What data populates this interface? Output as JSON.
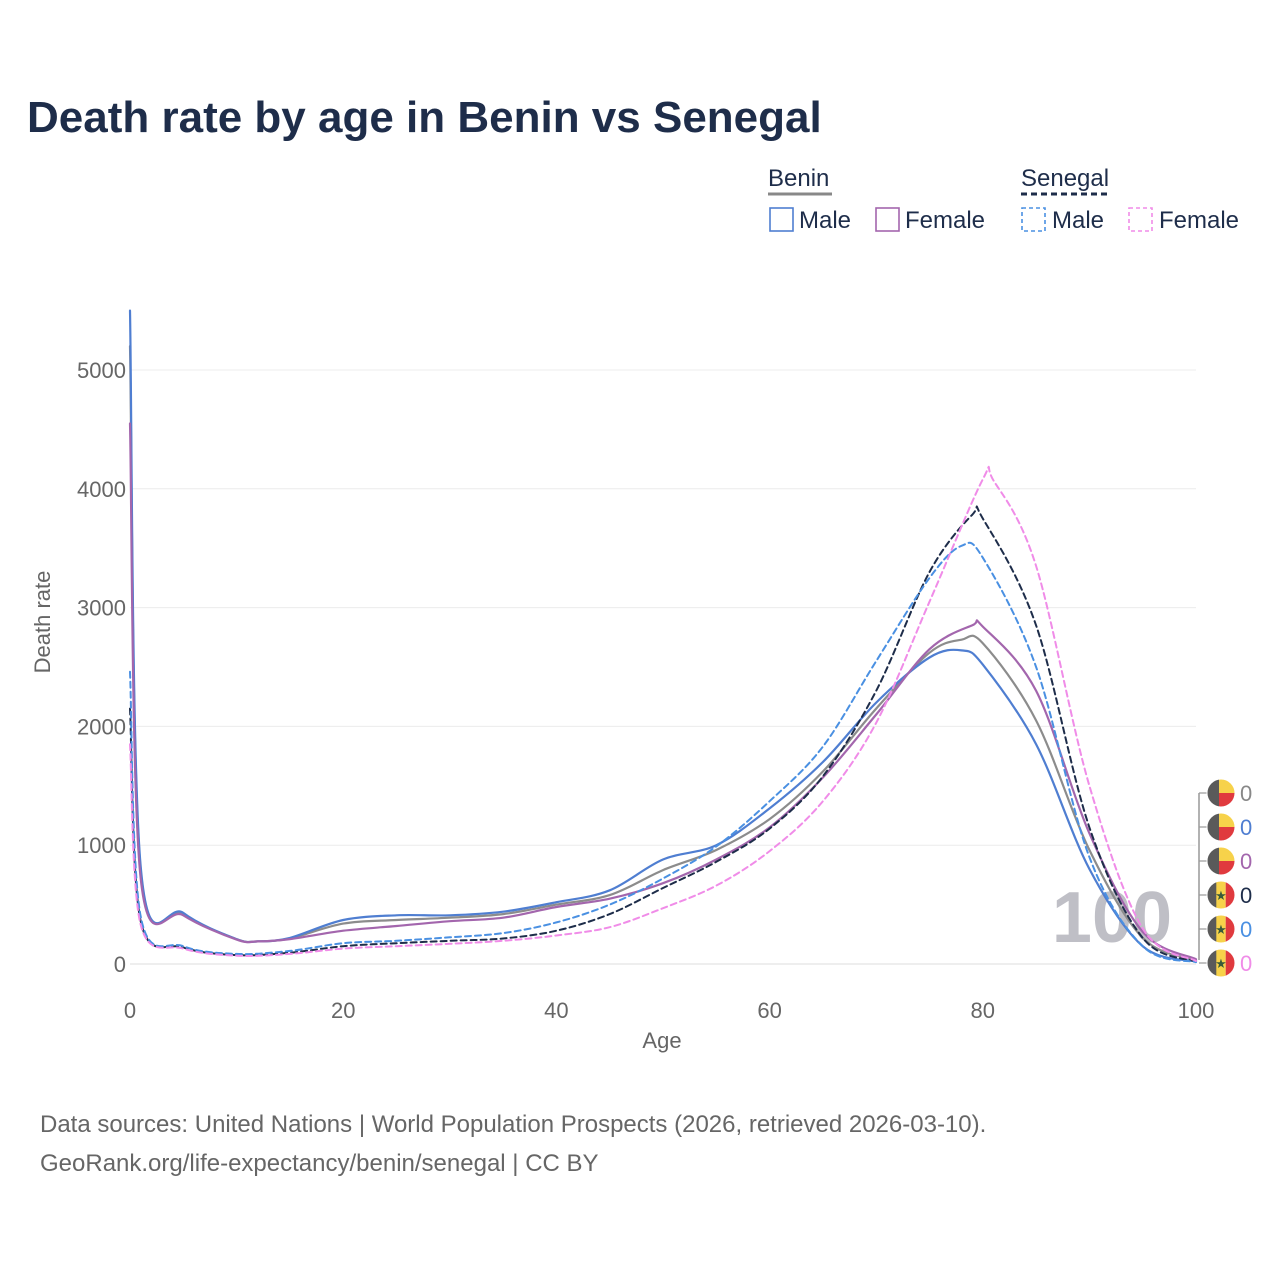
{
  "chart_data": {
    "type": "line",
    "title": "Death rate by age in Benin vs Senegal",
    "xlabel": "Age",
    "ylabel": "Death rate",
    "xlim": [
      0,
      100
    ],
    "ylim": [
      0,
      5500
    ],
    "xticks": [
      0,
      20,
      40,
      60,
      80,
      100
    ],
    "yticks": [
      0,
      1000,
      2000,
      3000,
      4000,
      5000
    ],
    "legend": {
      "groups": [
        {
          "country": "Benin",
          "color": "#888888",
          "dashed": false
        },
        {
          "country": "Senegal",
          "color": "#1e2d4a",
          "dashed": true
        }
      ],
      "male_label": "Male",
      "female_label": "Female"
    },
    "series": [
      {
        "name": "Benin",
        "sex": "Total",
        "color": "#8c8c8c",
        "dashed": false,
        "x": [
          0,
          1,
          5,
          10,
          12,
          15,
          20,
          25,
          30,
          35,
          40,
          45,
          50,
          55,
          60,
          65,
          70,
          75,
          78,
          80,
          85,
          90,
          95,
          100
        ],
        "values": [
          5200,
          790,
          420,
          210,
          190,
          215,
          340,
          370,
          390,
          420,
          500,
          580,
          790,
          960,
          1220,
          1620,
          2150,
          2620,
          2730,
          2700,
          2050,
          960,
          220,
          30
        ]
      },
      {
        "name": "Benin",
        "sex": "Male",
        "color": "#4f7ed1",
        "dashed": false,
        "x": [
          0,
          1,
          5,
          10,
          12,
          15,
          20,
          25,
          30,
          35,
          40,
          45,
          50,
          55,
          60,
          65,
          70,
          75,
          78,
          80,
          85,
          90,
          95,
          100
        ],
        "values": [
          5500,
          820,
          430,
          210,
          190,
          220,
          370,
          410,
          410,
          440,
          520,
          620,
          880,
          1000,
          1310,
          1700,
          2200,
          2580,
          2640,
          2520,
          1850,
          800,
          150,
          20
        ]
      },
      {
        "name": "Benin",
        "sex": "Female",
        "color": "#a366ad",
        "dashed": false,
        "x": [
          0,
          1,
          5,
          10,
          12,
          15,
          20,
          25,
          30,
          35,
          40,
          45,
          50,
          55,
          60,
          65,
          70,
          75,
          79,
          80,
          85,
          90,
          95,
          100
        ],
        "values": [
          4550,
          720,
          410,
          205,
          190,
          210,
          280,
          320,
          360,
          390,
          480,
          550,
          680,
          880,
          1150,
          1570,
          2100,
          2650,
          2850,
          2840,
          2300,
          1100,
          270,
          40
        ]
      },
      {
        "name": "Senegal",
        "sex": "Total",
        "color": "#1e2d4a",
        "dashed": true,
        "x": [
          0,
          1,
          5,
          10,
          15,
          20,
          25,
          30,
          35,
          40,
          45,
          50,
          55,
          60,
          65,
          70,
          75,
          79,
          80,
          85,
          90,
          95,
          100
        ],
        "values": [
          2150,
          360,
          140,
          75,
          95,
          150,
          175,
          195,
          215,
          280,
          420,
          640,
          860,
          1140,
          1580,
          2300,
          3300,
          3780,
          3750,
          2850,
          1150,
          220,
          20
        ]
      },
      {
        "name": "Senegal",
        "sex": "Male",
        "color": "#4a90e2",
        "dashed": true,
        "x": [
          0,
          1,
          5,
          10,
          15,
          20,
          25,
          30,
          35,
          40,
          45,
          50,
          55,
          60,
          65,
          70,
          75,
          78,
          80,
          85,
          90,
          95,
          100
        ],
        "values": [
          2460,
          400,
          150,
          85,
          110,
          175,
          195,
          225,
          260,
          350,
          500,
          720,
          990,
          1370,
          1830,
          2550,
          3250,
          3520,
          3420,
          2500,
          900,
          150,
          15
        ]
      },
      {
        "name": "Senegal",
        "sex": "Female",
        "color": "#f08ce8",
        "dashed": true,
        "x": [
          0,
          1,
          5,
          10,
          15,
          20,
          25,
          30,
          35,
          40,
          45,
          50,
          55,
          60,
          65,
          70,
          75,
          80,
          81,
          85,
          90,
          95,
          100
        ],
        "values": [
          1850,
          330,
          130,
          70,
          85,
          130,
          150,
          170,
          195,
          240,
          310,
          470,
          660,
          950,
          1370,
          2030,
          3050,
          4080,
          4070,
          3350,
          1500,
          300,
          25
        ]
      }
    ],
    "end_markers": [
      {
        "country": "Benin",
        "color": "#888888",
        "value": "0"
      },
      {
        "country": "Benin",
        "color": "#4f7ed1",
        "value": "0"
      },
      {
        "country": "Benin",
        "color": "#a366ad",
        "value": "0"
      },
      {
        "country": "Senegal",
        "color": "#1e2d4a",
        "value": "0"
      },
      {
        "country": "Senegal",
        "color": "#4a90e2",
        "value": "0"
      },
      {
        "country": "Senegal",
        "color": "#f08ce8",
        "value": "0"
      }
    ],
    "watermark_age": "100",
    "sources": "Data sources: United Nations | World Population Prospects (2026, retrieved 2026-03-10).",
    "credit": "GeoRank.org/life-expectancy/benin/senegal | CC BY"
  }
}
